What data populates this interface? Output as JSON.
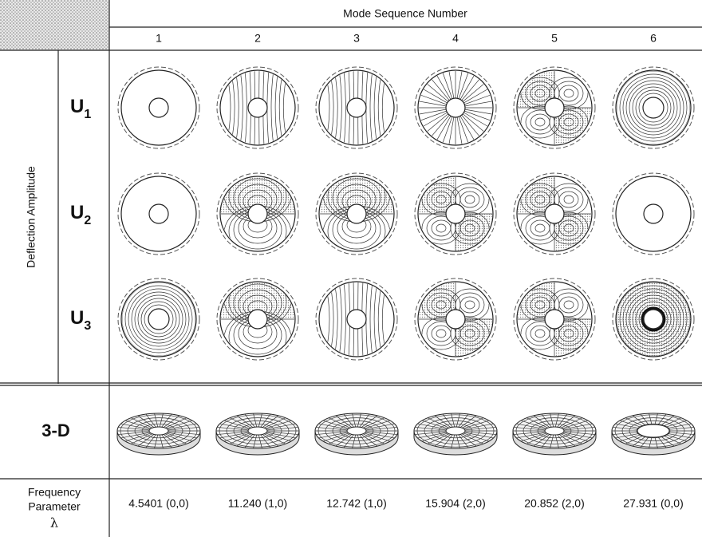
{
  "header": {
    "title": "Mode Sequence Number",
    "columns": [
      "1",
      "2",
      "3",
      "4",
      "5",
      "6"
    ]
  },
  "row_group_label": "Deflection Amplitude",
  "rows": [
    {
      "symbol": "U",
      "index": "1"
    },
    {
      "symbol": "U",
      "index": "2"
    },
    {
      "symbol": "U",
      "index": "3"
    }
  ],
  "view_row_label": "3-D",
  "frequency": {
    "label_lines": [
      "Frequency",
      "Parameter",
      "λ"
    ],
    "values": [
      "4.5401 (0,0)",
      "11.240 (1,0)",
      "12.742 (1,0)",
      "15.904 (2,0)",
      "20.852 (2,0)",
      "27.931 (0,0)"
    ]
  }
}
